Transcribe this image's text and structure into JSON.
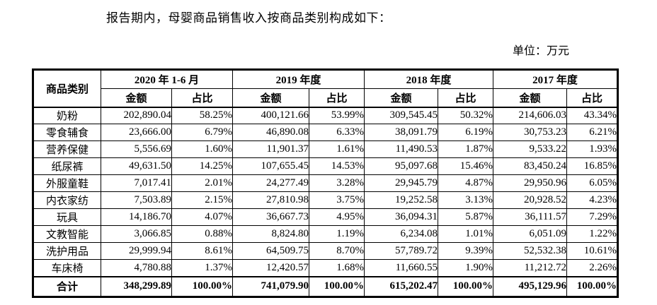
{
  "page": {
    "intro_text": "报告期内，母婴商品销售收入按商品类别构成如下：",
    "unit_label": "单位：万元"
  },
  "table": {
    "category_header": "商品类别",
    "period_headers": [
      "2020 年 1-6 月",
      "2019 年度",
      "2018 年度",
      "2017 年度"
    ],
    "sub_headers": {
      "amount": "金额",
      "ratio": "占比"
    },
    "rows": [
      {
        "category": "奶粉",
        "values": [
          "202,890.04",
          "58.25%",
          "400,121.66",
          "53.99%",
          "309,545.45",
          "50.32%",
          "214,606.03",
          "43.34%"
        ]
      },
      {
        "category": "零食辅食",
        "values": [
          "23,666.00",
          "6.79%",
          "46,890.08",
          "6.33%",
          "38,091.79",
          "6.19%",
          "30,753.23",
          "6.21%"
        ]
      },
      {
        "category": "营养保健",
        "values": [
          "5,556.69",
          "1.60%",
          "11,901.37",
          "1.61%",
          "11,490.53",
          "1.87%",
          "9,533.22",
          "1.93%"
        ]
      },
      {
        "category": "纸尿裤",
        "values": [
          "49,631.50",
          "14.25%",
          "107,655.45",
          "14.53%",
          "95,097.68",
          "15.46%",
          "83,450.24",
          "16.85%"
        ]
      },
      {
        "category": "外服童鞋",
        "values": [
          "7,017.41",
          "2.01%",
          "24,277.49",
          "3.28%",
          "29,945.79",
          "4.87%",
          "29,950.96",
          "6.05%"
        ]
      },
      {
        "category": "内衣家纺",
        "values": [
          "7,503.89",
          "2.15%",
          "27,810.98",
          "3.75%",
          "19,252.58",
          "3.13%",
          "20,928.52",
          "4.23%"
        ]
      },
      {
        "category": "玩具",
        "values": [
          "14,186.70",
          "4.07%",
          "36,667.73",
          "4.95%",
          "36,094.31",
          "5.87%",
          "36,111.57",
          "7.29%"
        ]
      },
      {
        "category": "文教智能",
        "values": [
          "3,066.85",
          "0.88%",
          "8,824.80",
          "1.19%",
          "6,234.08",
          "1.01%",
          "6,051.09",
          "1.22%"
        ]
      },
      {
        "category": "洗护用品",
        "values": [
          "29,999.94",
          "8.61%",
          "64,509.75",
          "8.70%",
          "57,789.72",
          "9.39%",
          "52,532.38",
          "10.61%"
        ]
      },
      {
        "category": "车床椅",
        "values": [
          "4,780.88",
          "1.37%",
          "12,420.57",
          "1.68%",
          "11,660.55",
          "1.90%",
          "11,212.72",
          "2.26%"
        ]
      },
      {
        "category": "合计",
        "values": [
          "348,299.89",
          "100.00%",
          "741,079.90",
          "100.00%",
          "615,202.47",
          "100.00%",
          "495,129.96",
          "100.00%"
        ],
        "is_total": true
      }
    ]
  }
}
